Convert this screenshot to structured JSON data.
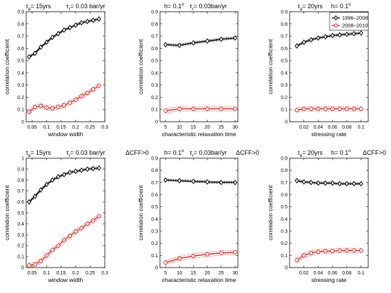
{
  "colors": {
    "series1": "#000000",
    "series2": "#e8201a"
  },
  "chart_data": [
    {
      "type": "line",
      "title_parts": [
        "t",
        "a",
        "= 15yrs",
        "τ",
        "r",
        "= 0.03 bar/yr"
      ],
      "xlabel": "window width",
      "ylabel": "correlation coefficient",
      "xlim": [
        0.03,
        0.3
      ],
      "ylim": [
        0,
        0.9
      ],
      "xticks": [
        "0.05",
        "0.1",
        "0.15",
        "0.2",
        "0.25",
        "0.3"
      ],
      "yticks": [
        "0",
        "0.1",
        "0.2",
        "0.3",
        "0.4",
        "0.5",
        "0.6",
        "0.7",
        "0.8",
        "0.9"
      ],
      "x": [
        0.04,
        0.06,
        0.08,
        0.1,
        0.12,
        0.14,
        0.16,
        0.18,
        0.2,
        0.22,
        0.24,
        0.26,
        0.28
      ],
      "series": [
        {
          "values": [
            0.53,
            0.56,
            0.61,
            0.65,
            0.69,
            0.72,
            0.75,
            0.77,
            0.79,
            0.81,
            0.82,
            0.83,
            0.84
          ]
        },
        {
          "values": [
            0.08,
            0.12,
            0.13,
            0.115,
            0.11,
            0.12,
            0.135,
            0.155,
            0.18,
            0.21,
            0.235,
            0.265,
            0.295
          ]
        }
      ]
    },
    {
      "type": "line",
      "title_parts": [
        "h= 0.1",
        "o",
        "τ",
        "r",
        "= 0.03bar/yr"
      ],
      "xlabel": "characteristic relaxation time",
      "ylabel": "correlation coefficient",
      "xlim": [
        3,
        31
      ],
      "ylim": [
        0,
        0.9
      ],
      "xticks": [
        "5",
        "10",
        "15",
        "20",
        "25",
        "30"
      ],
      "yticks": [
        "0",
        "0.1",
        "0.2",
        "0.3",
        "0.4",
        "0.5",
        "0.6",
        "0.7",
        "0.8",
        "0.9"
      ],
      "x": [
        5,
        10,
        15,
        20,
        25,
        30
      ],
      "series": [
        {
          "values": [
            0.63,
            0.625,
            0.645,
            0.66,
            0.675,
            0.685
          ]
        },
        {
          "values": [
            0.09,
            0.105,
            0.105,
            0.105,
            0.105,
            0.105
          ]
        }
      ]
    },
    {
      "type": "line",
      "title_parts": [
        "t",
        "a",
        "= 20yrs",
        "h= 0.1",
        "o"
      ],
      "xlabel": "stressing rate",
      "ylabel": "correlation coefficient",
      "xlim": [
        0,
        0.11
      ],
      "ylim": [
        0,
        0.9
      ],
      "xticks": [
        "0.02",
        "0.04",
        "0.06",
        "0.08",
        "0.1"
      ],
      "yticks": [
        "0",
        "0.1",
        "0.2",
        "0.3",
        "0.4",
        "0.5",
        "0.6",
        "0.7",
        "0.8",
        "0.9"
      ],
      "legend": {
        "entries": [
          "1996–2008",
          "2008–2010"
        ],
        "placement": "top-right"
      },
      "x": [
        0.01,
        0.02,
        0.03,
        0.04,
        0.05,
        0.06,
        0.07,
        0.08,
        0.09,
        0.1
      ],
      "series": [
        {
          "name": "1996–2008",
          "values": [
            0.62,
            0.65,
            0.67,
            0.685,
            0.695,
            0.705,
            0.71,
            0.715,
            0.72,
            0.725
          ]
        },
        {
          "name": "2008–2010",
          "values": [
            0.095,
            0.105,
            0.105,
            0.105,
            0.105,
            0.105,
            0.105,
            0.105,
            0.105,
            0.105
          ]
        }
      ]
    },
    {
      "type": "line",
      "title_parts": [
        "t",
        "a",
        "= 15yrs",
        "τ",
        "r",
        "= 0.03 bar/yr",
        "ΔCFF>0"
      ],
      "xlabel": "window width",
      "ylabel": "correlation coefficient",
      "xlim": [
        0.03,
        0.3
      ],
      "ylim": [
        0,
        1
      ],
      "xticks": [
        "0.05",
        "0.1",
        "0.15",
        "0.2",
        "0.25",
        "0.3"
      ],
      "yticks": [
        "0",
        "0.1",
        "0.2",
        "0.3",
        "0.4",
        "0.5",
        "0.6",
        "0.7",
        "0.8",
        "0.9",
        "1"
      ],
      "x": [
        0.04,
        0.06,
        0.08,
        0.1,
        0.12,
        0.14,
        0.16,
        0.18,
        0.2,
        0.22,
        0.24,
        0.26,
        0.28
      ],
      "series": [
        {
          "values": [
            0.6,
            0.65,
            0.71,
            0.76,
            0.8,
            0.83,
            0.85,
            0.87,
            0.88,
            0.89,
            0.9,
            0.905,
            0.91
          ]
        },
        {
          "values": [
            0.02,
            0.03,
            0.06,
            0.11,
            0.16,
            0.2,
            0.25,
            0.29,
            0.33,
            0.36,
            0.4,
            0.43,
            0.47
          ]
        }
      ]
    },
    {
      "type": "line",
      "title_parts": [
        "h= 0.1",
        "o",
        "τ",
        "r",
        "= 0.03bar/yr",
        "ΔCFF>0"
      ],
      "xlabel": "characteristic relaxation time",
      "ylabel": "correlation coefficient",
      "xlim": [
        3,
        31
      ],
      "ylim": [
        0,
        0.9
      ],
      "xticks": [
        "5",
        "10",
        "15",
        "20",
        "25",
        "30"
      ],
      "yticks": [
        "0",
        "0.1",
        "0.2",
        "0.3",
        "0.4",
        "0.5",
        "0.6",
        "0.7",
        "0.8",
        "0.9"
      ],
      "x": [
        5,
        10,
        15,
        20,
        25,
        30
      ],
      "series": [
        {
          "values": [
            0.72,
            0.715,
            0.71,
            0.705,
            0.7,
            0.7
          ]
        },
        {
          "values": [
            0.04,
            0.075,
            0.095,
            0.11,
            0.12,
            0.125
          ]
        }
      ]
    },
    {
      "type": "line",
      "title_parts": [
        "t",
        "a",
        "= 20yrs",
        "h= 0.1",
        "o",
        "ΔCFF>0"
      ],
      "xlabel": "stressing rate",
      "ylabel": "correlation coefficient",
      "xlim": [
        0,
        0.11
      ],
      "ylim": [
        0,
        0.9
      ],
      "xticks": [
        "0.02",
        "0.04",
        "0.06",
        "0.08",
        "0.1"
      ],
      "yticks": [
        "0",
        "0.1",
        "0.2",
        "0.3",
        "0.4",
        "0.5",
        "0.6",
        "0.7",
        "0.8",
        "0.9"
      ],
      "x": [
        0.01,
        0.02,
        0.03,
        0.04,
        0.05,
        0.06,
        0.07,
        0.08,
        0.09,
        0.1
      ],
      "series": [
        {
          "values": [
            0.715,
            0.705,
            0.7,
            0.695,
            0.695,
            0.695,
            0.69,
            0.69,
            0.69,
            0.69
          ]
        },
        {
          "values": [
            0.06,
            0.1,
            0.12,
            0.13,
            0.135,
            0.135,
            0.14,
            0.14,
            0.14,
            0.14
          ]
        }
      ]
    }
  ]
}
